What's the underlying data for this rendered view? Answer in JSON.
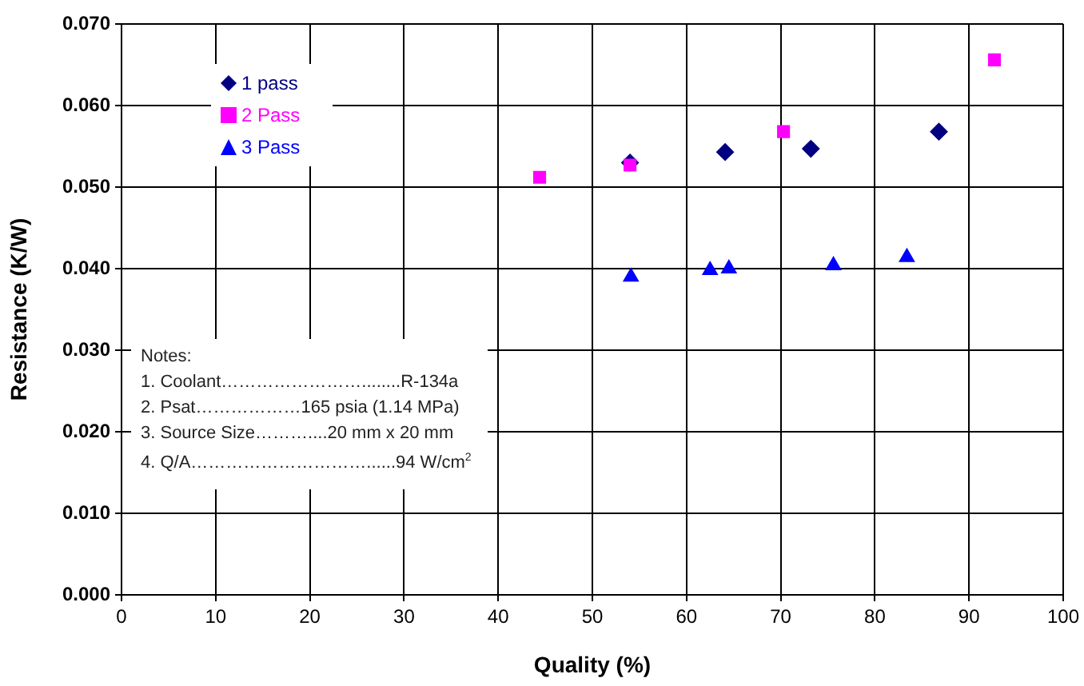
{
  "chart_data": {
    "type": "scatter",
    "xlabel": "Quality (%)",
    "ylabel": "Resistance (K/W)",
    "xlim": [
      0,
      100
    ],
    "xticks": [
      0,
      10,
      20,
      30,
      40,
      50,
      60,
      70,
      80,
      90,
      100
    ],
    "ylim": [
      0,
      0.07
    ],
    "yticks": [
      {
        "value": 0,
        "label": "0.000"
      },
      {
        "value": 0.01,
        "label": "0.010"
      },
      {
        "value": 0.02,
        "label": "0.020"
      },
      {
        "value": 0.03,
        "label": "0.030"
      },
      {
        "value": 0.04,
        "label": "0.040"
      },
      {
        "value": 0.05,
        "label": "0.050"
      },
      {
        "value": 0.06,
        "label": "0.060"
      },
      {
        "value": 0.07,
        "label": "0.070"
      }
    ],
    "grid": true,
    "legend": "top left",
    "series": [
      {
        "name": "1 pass",
        "color": "#000080",
        "marker": "diamond",
        "x": [
          54,
          64.1,
          73.2,
          86.8
        ],
        "values": [
          0.053,
          0.0543,
          0.0547,
          0.0568
        ]
      },
      {
        "name": "2 Pass",
        "color": "#ff00ff",
        "marker": "square",
        "x": [
          44.4,
          54,
          70.3,
          92.7
        ],
        "values": [
          0.0512,
          0.0527,
          0.0568,
          0.0656
        ]
      },
      {
        "name": "3 Pass",
        "color": "#0000ff",
        "marker": "triangle",
        "x": [
          54.1,
          62.5,
          64.5,
          75.6,
          83.4
        ],
        "values": [
          0.039,
          0.0398,
          0.04,
          0.0404,
          0.0414
        ]
      }
    ],
    "annotations": [
      "Notes:",
      "1. Coolant……………………........R-134a",
      "2. Psat………………165 psia (1.14 MPa)",
      "3. Source Size………....20 mm x 20 mm",
      "4. Q/A…………………………......94 W/cm$^{2}$"
    ]
  }
}
